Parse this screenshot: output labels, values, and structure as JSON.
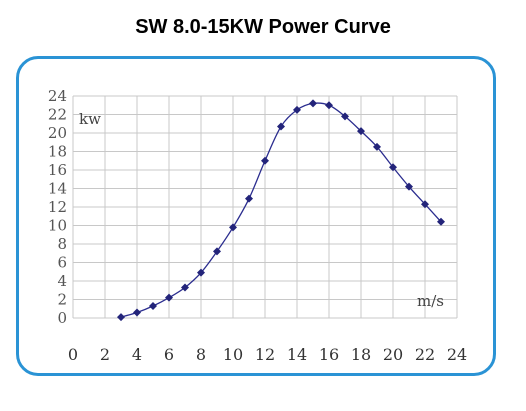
{
  "title": "SW 8.0-15KW Power Curve",
  "chart_data": {
    "type": "line",
    "title": "SW 8.0-15KW Power Curve",
    "y_unit_label": "kw",
    "x_unit_label": "m/s",
    "xlim": [
      0,
      24
    ],
    "ylim": [
      0,
      24
    ],
    "x_ticks": [
      "0",
      "2",
      "4",
      "6",
      "8",
      "10",
      "12",
      "14",
      "16",
      "18",
      "20",
      "22",
      "24"
    ],
    "y_ticks": [
      "0",
      "2",
      "4",
      "6",
      "8",
      "10",
      "12",
      "14",
      "16",
      "18",
      "20",
      "22",
      "24"
    ],
    "grid": true,
    "x": [
      3,
      4,
      5,
      6,
      7,
      8,
      9,
      10,
      11,
      12,
      13,
      14,
      15,
      16,
      17,
      18,
      19,
      20,
      21,
      22,
      23
    ],
    "y": [
      0.1,
      0.6,
      1.3,
      2.2,
      3.3,
      4.9,
      7.2,
      9.8,
      12.9,
      17.0,
      20.7,
      22.5,
      23.2,
      23.0,
      21.8,
      20.2,
      18.5,
      16.3,
      14.2,
      12.3,
      10.4
    ],
    "colors": {
      "line": "#2b2d8f",
      "marker": "#23247a",
      "grid": "#c8c8c8",
      "frame": "#2a93d5"
    }
  }
}
